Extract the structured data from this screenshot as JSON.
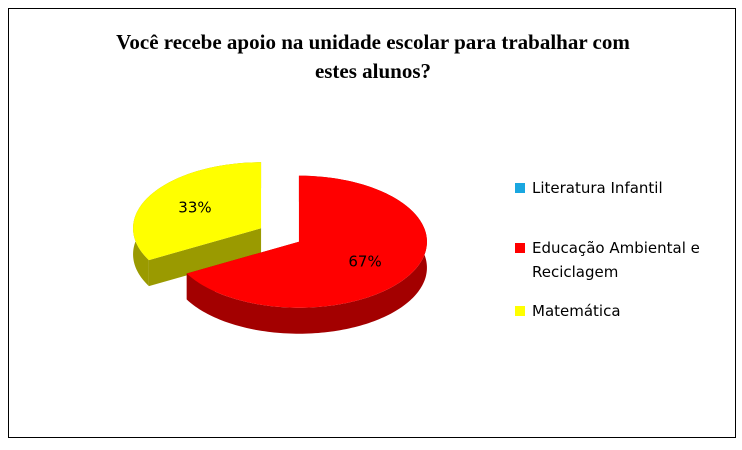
{
  "chart_data": {
    "type": "pie3d",
    "title": "Você recebe apoio na unidade escolar para trabalhar com estes alunos?",
    "categories": [
      "Literatura Infantil",
      "Educação Ambiental e Reciclagem",
      "Matemática"
    ],
    "values": [
      0,
      67,
      33
    ],
    "value_labels": [
      null,
      "67%",
      "33%"
    ],
    "colors": [
      "#1aa7e0",
      "#ff0000",
      "#ffff00"
    ],
    "side_colors": [
      "#0d6f99",
      "#a30000",
      "#9a9a00"
    ],
    "legend": "right"
  }
}
